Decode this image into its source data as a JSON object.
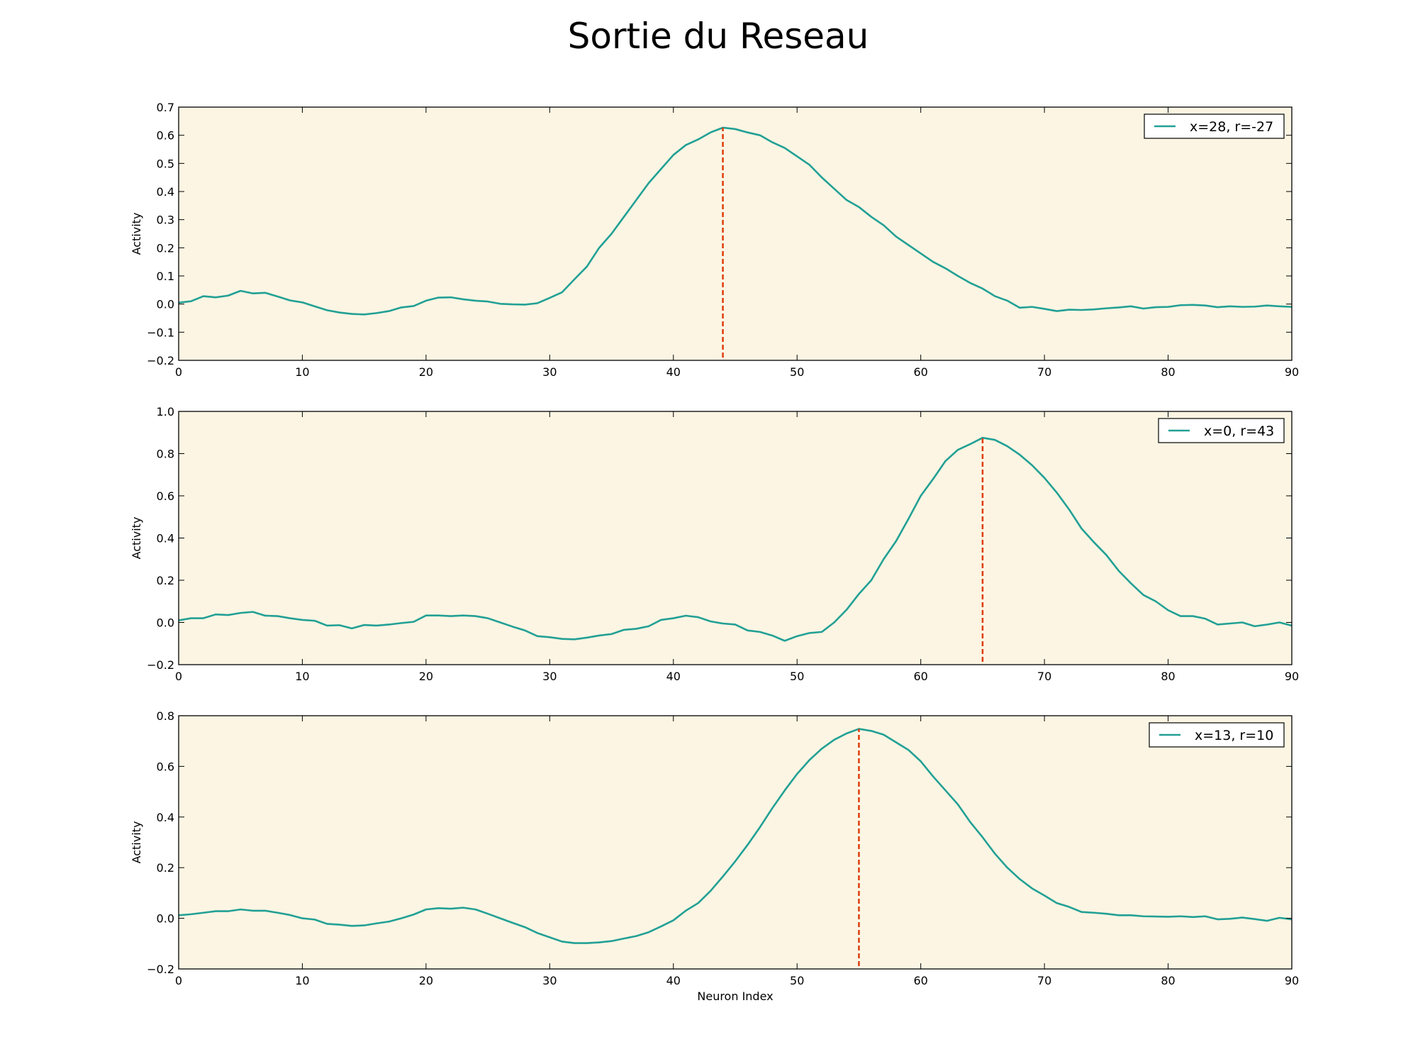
{
  "title": "Sortie du Reseau",
  "colors": {
    "background": "#fcf5e3",
    "series_line": "#22a095",
    "peak_marker": "#dd3c0b",
    "axis": "#000000"
  },
  "chart_data": [
    {
      "type": "line",
      "xlabel": "",
      "ylabel": "Activity",
      "xlim": [
        0,
        90
      ],
      "ylim": [
        -0.2,
        0.7
      ],
      "xticks": [
        "0",
        "10",
        "20",
        "30",
        "40",
        "50",
        "60",
        "70",
        "80",
        "90"
      ],
      "yticks": [
        "0.7",
        "0.6",
        "0.5",
        "0.4",
        "0.3",
        "0.2",
        "0.1",
        "0.0",
        "−0.1",
        "−0.2"
      ],
      "legend_position": "top-right",
      "grid": false,
      "series": [
        {
          "name": "x=28, r=-27",
          "x": [
            0,
            1,
            2,
            3,
            4,
            5,
            6,
            7,
            8,
            9,
            10,
            11,
            12,
            13,
            14,
            15,
            16,
            17,
            18,
            19,
            20,
            21,
            22,
            23,
            24,
            25,
            26,
            27,
            28,
            29,
            30,
            31,
            32,
            33,
            34,
            35,
            36,
            37,
            38,
            39,
            40,
            41,
            42,
            43,
            44,
            45,
            46,
            47,
            48,
            49,
            50,
            51,
            52,
            53,
            54,
            55,
            56,
            57,
            58,
            59,
            60,
            61,
            62,
            63,
            64,
            65,
            66,
            67,
            68,
            69,
            70,
            71,
            72,
            73,
            74,
            75,
            76,
            77,
            78,
            79,
            80,
            81,
            82,
            83,
            84,
            85,
            86,
            87,
            88,
            89,
            90
          ],
          "values": [
            0.005,
            0.01,
            0.028,
            0.024,
            0.03,
            0.047,
            0.038,
            0.04,
            0.027,
            0.013,
            0.006,
            -0.008,
            -0.022,
            -0.03,
            -0.035,
            -0.037,
            -0.032,
            -0.025,
            -0.012,
            -0.007,
            0.012,
            0.023,
            0.024,
            0.017,
            0.012,
            0.009,
            0.001,
            -0.001,
            -0.002,
            0.003,
            0.022,
            0.042,
            0.088,
            0.133,
            0.2,
            0.25,
            0.31,
            0.37,
            0.43,
            0.48,
            0.53,
            0.565,
            0.585,
            0.61,
            0.627,
            0.622,
            0.61,
            0.6,
            0.575,
            0.555,
            0.525,
            0.495,
            0.45,
            0.41,
            0.37,
            0.345,
            0.31,
            0.28,
            0.24,
            0.21,
            0.18,
            0.15,
            0.127,
            0.1,
            0.075,
            0.055,
            0.028,
            0.012,
            -0.013,
            -0.01,
            -0.017,
            -0.025,
            -0.02,
            -0.021,
            -0.019,
            -0.015,
            -0.012,
            -0.008,
            -0.016,
            -0.011,
            -0.01,
            -0.004,
            -0.003,
            -0.005,
            -0.011,
            -0.008,
            -0.01,
            -0.009,
            -0.005,
            -0.008,
            -0.01
          ]
        }
      ],
      "peak_marker_x": 44
    },
    {
      "type": "line",
      "xlabel": "",
      "ylabel": "Activity",
      "xlim": [
        0,
        90
      ],
      "ylim": [
        -0.2,
        1.0
      ],
      "xticks": [
        "0",
        "10",
        "20",
        "30",
        "40",
        "50",
        "60",
        "70",
        "80",
        "90"
      ],
      "yticks": [
        "1.0",
        "0.8",
        "0.6",
        "0.4",
        "0.2",
        "0.0",
        "−0.2"
      ],
      "legend_position": "top-right",
      "grid": false,
      "series": [
        {
          "name": "x=0, r=43",
          "x": [
            0,
            1,
            2,
            3,
            4,
            5,
            6,
            7,
            8,
            9,
            10,
            11,
            12,
            13,
            14,
            15,
            16,
            17,
            18,
            19,
            20,
            21,
            22,
            23,
            24,
            25,
            26,
            27,
            28,
            29,
            30,
            31,
            32,
            33,
            34,
            35,
            36,
            37,
            38,
            39,
            40,
            41,
            42,
            43,
            44,
            45,
            46,
            47,
            48,
            49,
            50,
            51,
            52,
            53,
            54,
            55,
            56,
            57,
            58,
            59,
            60,
            61,
            62,
            63,
            64,
            65,
            66,
            67,
            68,
            69,
            70,
            71,
            72,
            73,
            74,
            75,
            76,
            77,
            78,
            79,
            80,
            81,
            82,
            83,
            84,
            85,
            86,
            87,
            88,
            89,
            90
          ],
          "values": [
            0.01,
            0.02,
            0.02,
            0.038,
            0.035,
            0.045,
            0.05,
            0.032,
            0.03,
            0.02,
            0.012,
            0.008,
            -0.015,
            -0.013,
            -0.028,
            -0.012,
            -0.015,
            -0.01,
            -0.003,
            0.003,
            0.033,
            0.033,
            0.03,
            0.033,
            0.03,
            0.02,
            0.0,
            -0.02,
            -0.038,
            -0.065,
            -0.07,
            -0.078,
            -0.08,
            -0.072,
            -0.062,
            -0.055,
            -0.035,
            -0.03,
            -0.018,
            0.012,
            0.02,
            0.032,
            0.025,
            0.005,
            -0.005,
            -0.01,
            -0.038,
            -0.045,
            -0.062,
            -0.087,
            -0.065,
            -0.05,
            -0.045,
            0.0,
            0.06,
            0.135,
            0.2,
            0.3,
            0.385,
            0.49,
            0.6,
            0.68,
            0.765,
            0.818,
            0.845,
            0.875,
            0.865,
            0.835,
            0.795,
            0.745,
            0.685,
            0.615,
            0.535,
            0.445,
            0.38,
            0.32,
            0.245,
            0.185,
            0.13,
            0.1,
            0.058,
            0.03,
            0.03,
            0.018,
            -0.01,
            -0.005,
            0.0,
            -0.018,
            -0.01,
            0.0,
            -0.015
          ]
        }
      ],
      "peak_marker_x": 65
    },
    {
      "type": "line",
      "xlabel": "Neuron Index",
      "ylabel": "Activity",
      "xlim": [
        0,
        90
      ],
      "ylim": [
        -0.2,
        0.8
      ],
      "xticks": [
        "0",
        "10",
        "20",
        "30",
        "40",
        "50",
        "60",
        "70",
        "80",
        "90"
      ],
      "yticks": [
        "0.8",
        "0.6",
        "0.4",
        "0.2",
        "0.0",
        "−0.2"
      ],
      "legend_position": "top-right",
      "grid": false,
      "series": [
        {
          "name": "x=13, r=10",
          "x": [
            0,
            1,
            2,
            3,
            4,
            5,
            6,
            7,
            8,
            9,
            10,
            11,
            12,
            13,
            14,
            15,
            16,
            17,
            18,
            19,
            20,
            21,
            22,
            23,
            24,
            25,
            26,
            27,
            28,
            29,
            30,
            31,
            32,
            33,
            34,
            35,
            36,
            37,
            38,
            39,
            40,
            41,
            42,
            43,
            44,
            45,
            46,
            47,
            48,
            49,
            50,
            51,
            52,
            53,
            54,
            55,
            56,
            57,
            58,
            59,
            60,
            61,
            62,
            63,
            64,
            65,
            66,
            67,
            68,
            69,
            70,
            71,
            72,
            73,
            74,
            75,
            76,
            77,
            78,
            79,
            80,
            81,
            82,
            83,
            84,
            85,
            86,
            87,
            88,
            89,
            90
          ],
          "values": [
            0.012,
            0.016,
            0.022,
            0.028,
            0.028,
            0.035,
            0.03,
            0.03,
            0.022,
            0.013,
            0.0,
            -0.005,
            -0.022,
            -0.025,
            -0.03,
            -0.028,
            -0.02,
            -0.013,
            0.0,
            0.015,
            0.035,
            0.04,
            0.038,
            0.042,
            0.035,
            0.018,
            0.0,
            -0.018,
            -0.035,
            -0.058,
            -0.075,
            -0.092,
            -0.098,
            -0.098,
            -0.095,
            -0.09,
            -0.08,
            -0.07,
            -0.055,
            -0.032,
            -0.008,
            0.03,
            0.06,
            0.108,
            0.165,
            0.225,
            0.29,
            0.36,
            0.435,
            0.505,
            0.57,
            0.625,
            0.67,
            0.705,
            0.73,
            0.748,
            0.74,
            0.725,
            0.695,
            0.665,
            0.62,
            0.56,
            0.505,
            0.45,
            0.38,
            0.32,
            0.255,
            0.2,
            0.155,
            0.118,
            0.09,
            0.06,
            0.045,
            0.025,
            0.022,
            0.018,
            0.012,
            0.012,
            0.008,
            0.007,
            0.006,
            0.008,
            0.005,
            0.008,
            -0.004,
            -0.002,
            0.003,
            -0.003,
            -0.01,
            0.002,
            -0.004
          ]
        }
      ],
      "peak_marker_x": 55
    }
  ]
}
